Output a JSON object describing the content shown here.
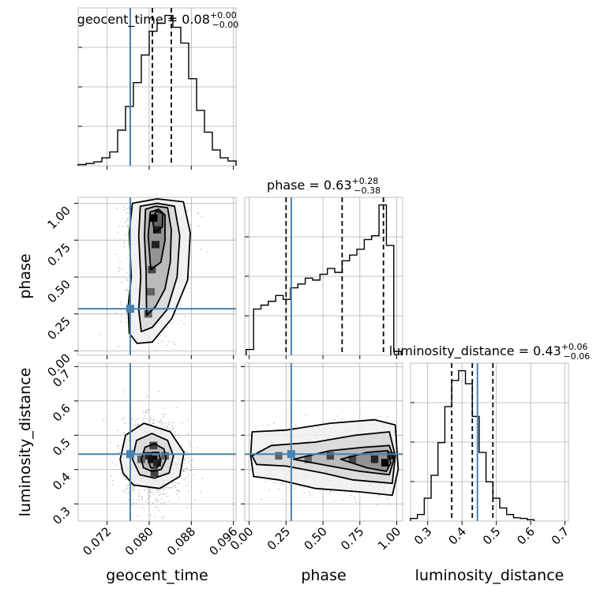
{
  "chart_data": {
    "type": "corner",
    "parameters": [
      "geocent_time",
      "phase",
      "luminosity_distance"
    ],
    "truth": {
      "geocent_time": 0.0764,
      "phase": 0.285,
      "luminosity_distance": 0.445
    },
    "truth_color": "#4682b4",
    "titles": [
      {
        "param": "geocent_time",
        "text": "geocent_time = 0.08",
        "sup": "+0.00",
        "sub": "−0.00"
      },
      {
        "param": "phase",
        "text": "phase = 0.63",
        "sup": "+0.28",
        "sub": "−0.38"
      },
      {
        "param": "luminosity_distance",
        "text": "luminosity_distance = 0.43",
        "sup": "+0.06",
        "sub": "−0.06"
      }
    ],
    "axes": {
      "geocent_time": {
        "range": [
          0.0665,
          0.0965
        ],
        "ticks": [
          "0.072",
          "0.080",
          "0.088",
          "0.096"
        ],
        "label": "geocent_time"
      },
      "phase": {
        "range": [
          -0.03,
          1.04
        ],
        "ticks": [
          "0.00",
          "0.25",
          "0.50",
          "0.75",
          "1.00"
        ],
        "label": "phase"
      },
      "luminosity_distance": {
        "range": [
          0.25,
          0.71
        ],
        "ticks": [
          "0.3",
          "0.4",
          "0.5",
          "0.6",
          "0.7"
        ],
        "label": "luminosity_distance"
      }
    },
    "grid": true,
    "histograms": [
      {
        "param": "geocent_time",
        "bin_start": 0.0665,
        "bin_width": 0.0015,
        "counts": [
          0.3,
          0.6,
          1.0,
          2.0,
          3.5,
          9.0,
          15.0,
          21.0,
          28.0,
          34.0,
          36.0,
          38.0,
          35.0,
          31.0,
          22.0,
          14.0,
          8.5,
          4.0,
          2.0,
          1.2
        ],
        "quantiles": [
          0.0764,
          0.0806,
          0.0842
        ]
      },
      {
        "param": "phase",
        "bin_start": -0.02,
        "bin_width": 0.05,
        "counts": [
          0.3,
          2.4,
          2.6,
          2.8,
          3.1,
          2.9,
          3.5,
          3.7,
          4.0,
          3.9,
          4.2,
          4.5,
          4.3,
          4.9,
          5.2,
          5.5,
          6.0,
          6.2,
          7.8,
          5.7,
          0.2
        ],
        "quantiles": [
          0.25,
          0.63,
          0.91
        ]
      },
      {
        "param": "luminosity_distance",
        "bin_start": 0.25,
        "bin_width": 0.02,
        "counts": [
          0.4,
          1.0,
          3.5,
          7.0,
          12.0,
          17.5,
          21.5,
          23.0,
          21.0,
          16.0,
          10.5,
          6.0,
          3.5,
          2.0,
          1.0,
          0.5,
          0.4,
          0.2
        ],
        "quantiles": [
          0.37,
          0.43,
          0.49
        ]
      }
    ],
    "joint_2d": [
      {
        "x": "geocent_time",
        "y": "phase"
      },
      {
        "x": "geocent_time",
        "y": "luminosity_distance"
      },
      {
        "x": "phase",
        "y": "luminosity_distance"
      }
    ]
  }
}
